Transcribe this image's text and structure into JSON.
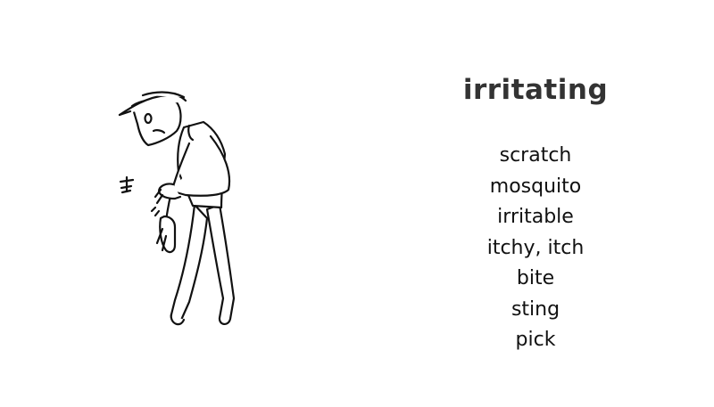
{
  "headword": "irritating",
  "related_words": [
    "scratch",
    "mosquito",
    "irritable",
    "itchy, itch",
    "bite",
    "sting",
    "pick"
  ],
  "illustration": {
    "subject_icon": "scratching-person-icon",
    "insect_icon": "mosquito-icon",
    "line_color": "#111111",
    "fill_color": "#ffffff"
  }
}
